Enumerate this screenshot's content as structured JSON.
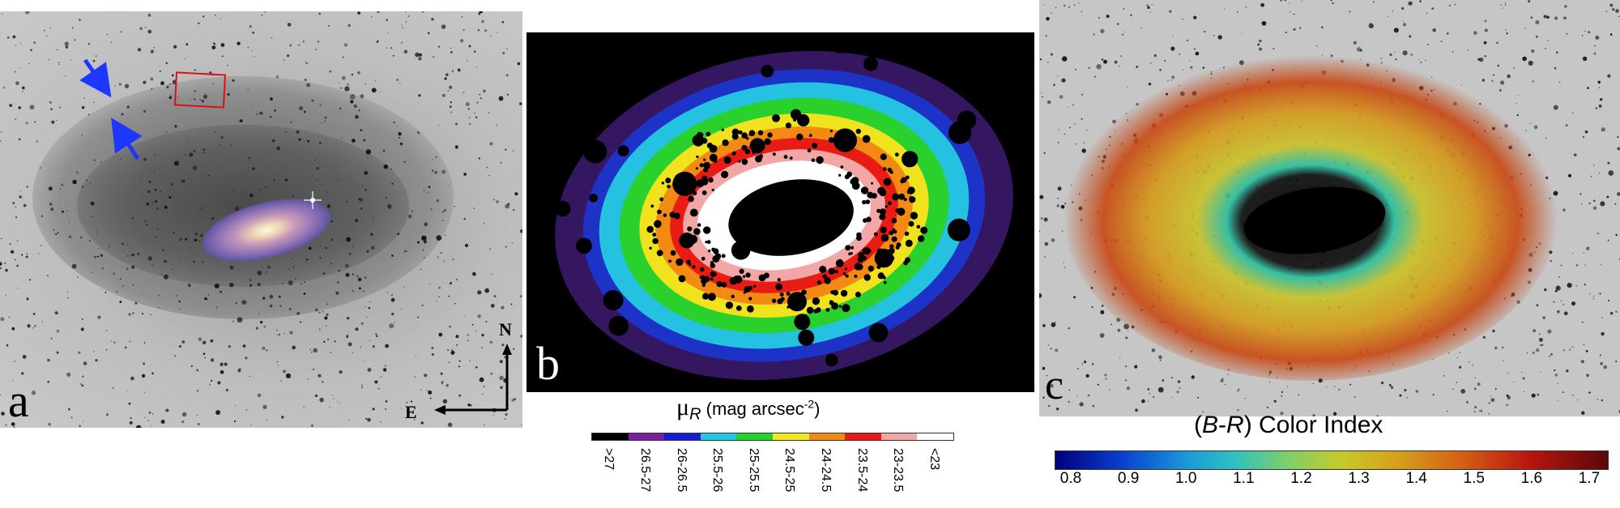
{
  "panels": {
    "a": {
      "letter": "a",
      "compass": {
        "north": "N",
        "east": "E"
      }
    },
    "b": {
      "letter": "b"
    },
    "c": {
      "letter": "c"
    }
  },
  "surface_brightness_legend": {
    "symbol": "μ",
    "subscript": "R",
    "units_prefix": "(mag arcsec",
    "units_exp": "-2",
    "units_suffix": ")",
    "bins": [
      {
        "label": ">27",
        "color": "#000000"
      },
      {
        "label": "26.5-27",
        "color": "#7b1fa2"
      },
      {
        "label": "26-26.5",
        "color": "#1a1ad6"
      },
      {
        "label": "25.5-26",
        "color": "#22c9e6"
      },
      {
        "label": "25-25.5",
        "color": "#22d42a"
      },
      {
        "label": "24.5-25",
        "color": "#f2e81c"
      },
      {
        "label": "24-24.5",
        "color": "#f28a14"
      },
      {
        "label": "23.5-24",
        "color": "#e81c14"
      },
      {
        "label": "23-23.5",
        "color": "#f2a6a6"
      },
      {
        "label": "<23",
        "color": "#ffffff"
      }
    ]
  },
  "color_index_legend": {
    "prefix": "(",
    "b_letter": "B",
    "dash": "-",
    "r_letter": "R",
    "suffix": ") Color Index",
    "ticks": [
      "0.8",
      "0.9",
      "1.0",
      "1.1",
      "1.2",
      "1.3",
      "1.4",
      "1.5",
      "1.6",
      "1.7"
    ]
  }
}
